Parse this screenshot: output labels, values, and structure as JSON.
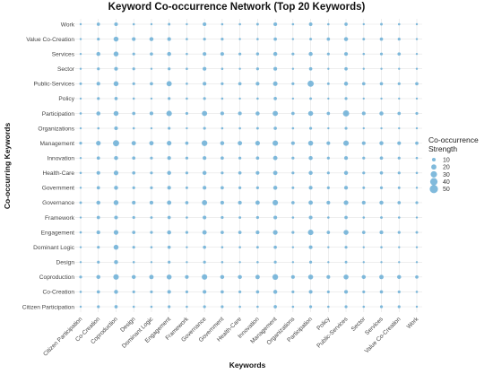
{
  "chart_data": {
    "type": "scatter",
    "title": "Keyword Co-occurrence Network (Top 20 Keywords)",
    "xlabel": "Keywords",
    "ylabel": "Co-occurring Keywords",
    "x_categories": [
      "Citizen Participation",
      "Co-Creation",
      "Coproduction",
      "Design",
      "Dominant Logic",
      "Engagement",
      "Framework",
      "Governance",
      "Government",
      "Health-Care",
      "Innovation",
      "Management",
      "Organizations",
      "Participation",
      "Policy",
      "Public-Services",
      "Sector",
      "Services",
      "Value Co-Creation",
      "Work"
    ],
    "y_categories": [
      "Citizen Participation",
      "Co-Creation",
      "Coproduction",
      "Design",
      "Dominant Logic",
      "Engagement",
      "Framework",
      "Governance",
      "Government",
      "Health-Care",
      "Innovation",
      "Management",
      "Organizations",
      "Participation",
      "Policy",
      "Public-Services",
      "Sector",
      "Services",
      "Value Co-Creation",
      "Work"
    ],
    "legend": {
      "title": "Co-occurrence Strength",
      "values": [
        10,
        20,
        30,
        40,
        50
      ],
      "placement": "right"
    },
    "color": "#6aaed6",
    "grid": true,
    "size_matrix_rows_top_to_bottom": [
      [
        3,
        8,
        10,
        4,
        3,
        5,
        3,
        10,
        4,
        4,
        5,
        10,
        4,
        9,
        4,
        8,
        3,
        5,
        4,
        3
      ],
      [
        3,
        6,
        18,
        10,
        12,
        10,
        4,
        6,
        6,
        3,
        4,
        8,
        3,
        5,
        8,
        12,
        5,
        8,
        6,
        3
      ],
      [
        3,
        12,
        18,
        6,
        8,
        12,
        4,
        10,
        10,
        6,
        7,
        12,
        6,
        12,
        6,
        10,
        4,
        6,
        8,
        3
      ],
      [
        2,
        6,
        10,
        6,
        2,
        6,
        4,
        10,
        4,
        3,
        6,
        10,
        3,
        8,
        2,
        8,
        2,
        3,
        2,
        2
      ],
      [
        5,
        10,
        18,
        6,
        8,
        20,
        4,
        10,
        6,
        8,
        10,
        15,
        6,
        28,
        5,
        12,
        8,
        8,
        6,
        8
      ],
      [
        3,
        6,
        8,
        4,
        3,
        6,
        4,
        6,
        4,
        3,
        4,
        8,
        3,
        5,
        3,
        6,
        3,
        3,
        3,
        3
      ],
      [
        4,
        12,
        18,
        8,
        10,
        22,
        6,
        20,
        10,
        10,
        12,
        20,
        8,
        18,
        8,
        28,
        10,
        12,
        8,
        6
      ],
      [
        2,
        4,
        10,
        4,
        3,
        6,
        3,
        6,
        4,
        4,
        5,
        8,
        4,
        6,
        3,
        6,
        3,
        3,
        3,
        2
      ],
      [
        6,
        16,
        28,
        14,
        14,
        16,
        8,
        24,
        12,
        14,
        16,
        22,
        10,
        18,
        10,
        22,
        10,
        12,
        10,
        8
      ],
      [
        3,
        8,
        12,
        8,
        6,
        10,
        6,
        10,
        8,
        6,
        8,
        14,
        6,
        12,
        6,
        10,
        6,
        8,
        6,
        4
      ],
      [
        4,
        10,
        16,
        8,
        6,
        12,
        6,
        12,
        6,
        8,
        10,
        14,
        6,
        12,
        6,
        12,
        6,
        8,
        6,
        4
      ],
      [
        3,
        8,
        12,
        6,
        6,
        10,
        5,
        10,
        8,
        6,
        6,
        12,
        5,
        10,
        6,
        10,
        5,
        6,
        5,
        3
      ],
      [
        5,
        12,
        18,
        10,
        10,
        14,
        8,
        20,
        10,
        10,
        14,
        22,
        8,
        14,
        10,
        16,
        10,
        12,
        8,
        6
      ],
      [
        3,
        8,
        10,
        6,
        5,
        8,
        4,
        10,
        6,
        5,
        6,
        10,
        4,
        10,
        4,
        8,
        4,
        5,
        4,
        3
      ],
      [
        4,
        10,
        16,
        8,
        6,
        12,
        6,
        14,
        8,
        8,
        10,
        16,
        6,
        22,
        8,
        18,
        8,
        10,
        6,
        5
      ],
      [
        2,
        6,
        18,
        6,
        4,
        8,
        3,
        8,
        4,
        4,
        5,
        8,
        3,
        10,
        3,
        6,
        3,
        4,
        3,
        2
      ],
      [
        2,
        6,
        12,
        4,
        3,
        6,
        3,
        6,
        4,
        3,
        4,
        6,
        3,
        6,
        3,
        5,
        3,
        3,
        3,
        2
      ],
      [
        6,
        12,
        22,
        12,
        14,
        18,
        10,
        22,
        12,
        12,
        14,
        24,
        10,
        18,
        10,
        18,
        12,
        14,
        12,
        8
      ],
      [
        4,
        8,
        12,
        6,
        6,
        10,
        6,
        10,
        8,
        6,
        8,
        12,
        6,
        10,
        6,
        10,
        6,
        8,
        6,
        4
      ],
      [
        3,
        6,
        8,
        4,
        4,
        6,
        4,
        6,
        6,
        4,
        4,
        8,
        4,
        6,
        4,
        6,
        4,
        6,
        6,
        3
      ]
    ]
  }
}
